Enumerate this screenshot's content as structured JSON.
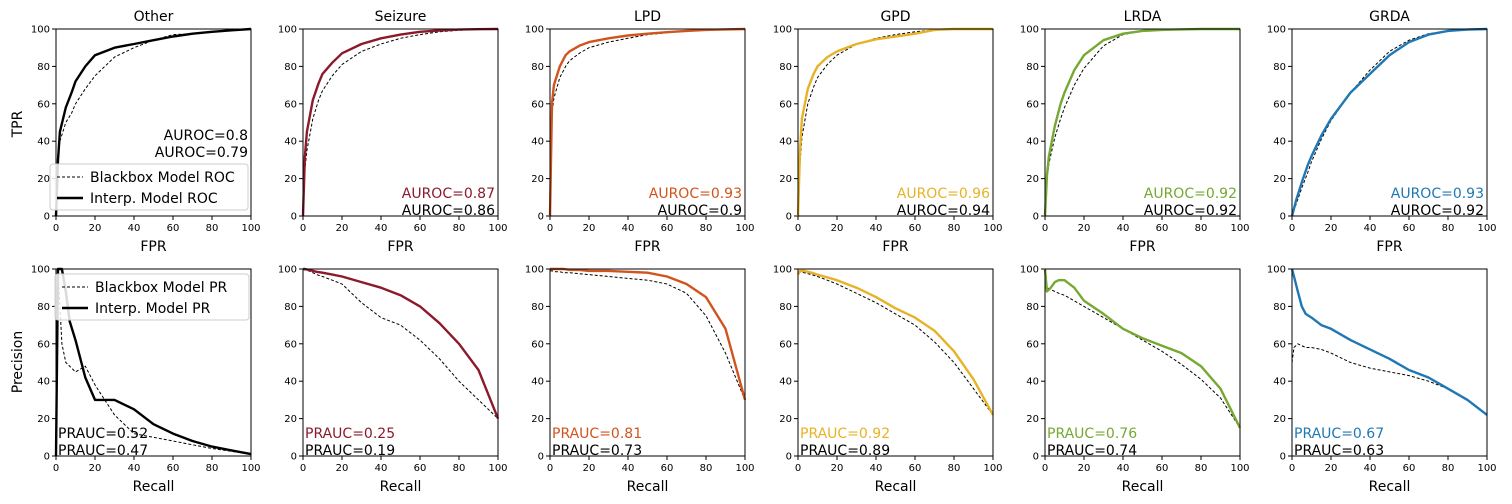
{
  "figure": {
    "row_ylabels": [
      "TPR",
      "Precision"
    ],
    "roc_xlabel": "FPR",
    "pr_xlabel": "Recall",
    "tick_values": [
      0,
      20,
      40,
      60,
      80,
      100
    ],
    "tick_labels": [
      "0",
      "20",
      "40",
      "60",
      "80",
      "100"
    ]
  },
  "legends": {
    "roc": [
      "Blackbox Model ROC",
      "Interp. Model ROC"
    ],
    "pr": [
      "Blackbox Model PR",
      "Interp. Model PR"
    ]
  },
  "classes": [
    {
      "name": "Other",
      "color": "#000000",
      "roc": {
        "interp_label": "AUROC=0.8",
        "blackbox_label": "AUROC=0.79"
      },
      "pr": {
        "interp_label": "PRAUC=0.52",
        "blackbox_label": "PRAUC=0.47"
      }
    },
    {
      "name": "Seizure",
      "color": "#8b1a2b",
      "roc": {
        "interp_label": "AUROC=0.87",
        "blackbox_label": "AUROC=0.86"
      },
      "pr": {
        "interp_label": "PRAUC=0.25",
        "blackbox_label": "PRAUC=0.19"
      }
    },
    {
      "name": "LPD",
      "color": "#d2541d",
      "roc": {
        "interp_label": "AUROC=0.93",
        "blackbox_label": "AUROC=0.9"
      },
      "pr": {
        "interp_label": "PRAUC=0.81",
        "blackbox_label": "PRAUC=0.73"
      }
    },
    {
      "name": "GPD",
      "color": "#e8b226",
      "roc": {
        "interp_label": "AUROC=0.96",
        "blackbox_label": "AUROC=0.94"
      },
      "pr": {
        "interp_label": "PRAUC=0.92",
        "blackbox_label": "PRAUC=0.89"
      }
    },
    {
      "name": "LRDA",
      "color": "#76a832",
      "roc": {
        "interp_label": "AUROC=0.92",
        "blackbox_label": "AUROC=0.92"
      },
      "pr": {
        "interp_label": "PRAUC=0.76",
        "blackbox_label": "PRAUC=0.74"
      }
    },
    {
      "name": "GRDA",
      "color": "#1f78b4",
      "roc": {
        "interp_label": "AUROC=0.93",
        "blackbox_label": "AUROC=0.92"
      },
      "pr": {
        "interp_label": "PRAUC=0.67",
        "blackbox_label": "PRAUC=0.63"
      }
    }
  ],
  "chart_data": [
    {
      "type": "line",
      "title": "Other",
      "xlabel": "FPR",
      "ylabel": "TPR",
      "xlim": [
        0,
        100
      ],
      "ylim": [
        0,
        100
      ],
      "x": [
        0,
        1,
        2,
        5,
        8,
        10,
        15,
        20,
        30,
        40,
        50,
        60,
        70,
        80,
        90,
        100
      ],
      "series": [
        {
          "name": "Interp. Model ROC",
          "values": [
            0,
            30,
            45,
            58,
            66,
            72,
            80,
            86,
            90,
            92,
            94,
            96,
            97.5,
            98.5,
            99.3,
            100
          ]
        },
        {
          "name": "Blackbox Model ROC",
          "values": [
            0,
            32,
            40,
            50,
            55,
            60,
            68,
            75,
            85,
            90,
            94,
            97,
            97.5,
            98.5,
            99.5,
            100
          ]
        }
      ]
    },
    {
      "type": "line",
      "title": "Seizure",
      "xlabel": "FPR",
      "ylabel": "TPR",
      "xlim": [
        0,
        100
      ],
      "ylim": [
        0,
        100
      ],
      "x": [
        0,
        1,
        2,
        5,
        8,
        10,
        15,
        20,
        30,
        40,
        50,
        60,
        70,
        80,
        90,
        100
      ],
      "series": [
        {
          "name": "Interp. Model ROC",
          "values": [
            0,
            32,
            45,
            62,
            71,
            76,
            82,
            87,
            92,
            95,
            97,
            98.5,
            99.2,
            99.7,
            99.9,
            100
          ]
        },
        {
          "name": "Blackbox Model ROC",
          "values": [
            0,
            25,
            35,
            52,
            62,
            67,
            75,
            81,
            88,
            92,
            95,
            97,
            98.5,
            99.3,
            99.8,
            100
          ]
        }
      ]
    },
    {
      "type": "line",
      "title": "LPD",
      "xlabel": "FPR",
      "ylabel": "TPR",
      "xlim": [
        0,
        100
      ],
      "ylim": [
        0,
        100
      ],
      "x": [
        0,
        1,
        2,
        5,
        8,
        10,
        15,
        20,
        30,
        40,
        50,
        60,
        70,
        80,
        90,
        100
      ],
      "series": [
        {
          "name": "Interp. Model ROC",
          "values": [
            0,
            60,
            70,
            80,
            86,
            88,
            91,
            93,
            95,
            96.5,
            97.5,
            98.3,
            99,
            99.5,
            99.8,
            100
          ]
        },
        {
          "name": "Blackbox Model ROC",
          "values": [
            0,
            55,
            63,
            74,
            80,
            83,
            87,
            90,
            93,
            95,
            97,
            98,
            99,
            99.5,
            99.8,
            100
          ]
        }
      ]
    },
    {
      "type": "line",
      "title": "GPD",
      "xlabel": "FPR",
      "ylabel": "TPR",
      "xlim": [
        0,
        100
      ],
      "ylim": [
        0,
        100
      ],
      "x": [
        0,
        1,
        2,
        5,
        8,
        10,
        15,
        20,
        30,
        40,
        50,
        60,
        70,
        80,
        90,
        100
      ],
      "series": [
        {
          "name": "Interp. Model ROC",
          "values": [
            0,
            35,
            52,
            68,
            76,
            80,
            85,
            88,
            92,
            94.5,
            96,
            97.5,
            99.5,
            100,
            100,
            100
          ]
        },
        {
          "name": "Blackbox Model ROC",
          "values": [
            0,
            28,
            42,
            60,
            69,
            74,
            81,
            86,
            92,
            95,
            97,
            98.5,
            99.5,
            100,
            100,
            100
          ]
        }
      ]
    },
    {
      "type": "line",
      "title": "LRDA",
      "xlabel": "FPR",
      "ylabel": "TPR",
      "xlim": [
        0,
        100
      ],
      "ylim": [
        0,
        100
      ],
      "x": [
        0,
        1,
        2,
        5,
        8,
        10,
        15,
        20,
        30,
        40,
        50,
        60,
        70,
        80,
        90,
        100
      ],
      "series": [
        {
          "name": "Interp. Model ROC",
          "values": [
            0,
            22,
            32,
            48,
            60,
            66,
            78,
            86,
            94,
            97.5,
            99,
            99.5,
            99.8,
            100,
            100,
            100
          ]
        },
        {
          "name": "Blackbox Model ROC",
          "values": [
            0,
            20,
            28,
            42,
            52,
            58,
            70,
            79,
            91,
            97,
            99,
            99.5,
            99.8,
            100,
            100,
            100
          ]
        }
      ]
    },
    {
      "type": "line",
      "title": "GRDA",
      "xlabel": "FPR",
      "ylabel": "TPR",
      "xlim": [
        0,
        100
      ],
      "ylim": [
        0,
        100
      ],
      "x": [
        0,
        1,
        2,
        5,
        8,
        10,
        15,
        20,
        30,
        40,
        50,
        60,
        70,
        80,
        90,
        100
      ],
      "series": [
        {
          "name": "Interp. Model ROC",
          "values": [
            0,
            4,
            8,
            18,
            27,
            32,
            43,
            52,
            66,
            76,
            86,
            93,
            97,
            99,
            99.7,
            100
          ]
        },
        {
          "name": "Blackbox Model ROC",
          "values": [
            0,
            3,
            6,
            15,
            23,
            29,
            41,
            51,
            66,
            78,
            88,
            94,
            97.5,
            99,
            99.7,
            100
          ]
        }
      ]
    },
    {
      "type": "line",
      "title": "Other",
      "xlabel": "Recall",
      "ylabel": "Precision",
      "xlim": [
        0,
        100
      ],
      "ylim": [
        0,
        100
      ],
      "x": [
        0,
        1,
        3,
        5,
        7,
        10,
        15,
        20,
        30,
        40,
        50,
        60,
        70,
        80,
        90,
        100
      ],
      "series": [
        {
          "name": "Interp. Model PR",
          "values": [
            0,
            100,
            100,
            88,
            72,
            62,
            42,
            30,
            30,
            25,
            17,
            12,
            8,
            5,
            3,
            1
          ]
        },
        {
          "name": "Blackbox Model PR",
          "values": [
            0,
            100,
            60,
            50,
            48,
            45,
            48,
            38,
            22,
            12,
            10,
            8,
            6,
            4,
            2.5,
            1
          ]
        }
      ]
    },
    {
      "type": "line",
      "title": "Seizure",
      "xlabel": "Recall",
      "ylabel": "Precision",
      "xlim": [
        0,
        100
      ],
      "ylim": [
        0,
        100
      ],
      "x": [
        0,
        1,
        3,
        5,
        7,
        10,
        15,
        20,
        30,
        40,
        50,
        60,
        70,
        80,
        90,
        100
      ],
      "series": [
        {
          "name": "Interp. Model PR",
          "values": [
            100,
            100,
            99.5,
            99,
            98.5,
            98,
            97,
            96,
            93,
            90,
            86,
            80,
            71,
            60,
            46,
            20
          ]
        },
        {
          "name": "Blackbox Model PR",
          "values": [
            100,
            99.5,
            99,
            98,
            97,
            96,
            94,
            92,
            82,
            74,
            70,
            62,
            52,
            40,
            30,
            20
          ]
        }
      ]
    },
    {
      "type": "line",
      "title": "LPD",
      "xlabel": "Recall",
      "ylabel": "Precision",
      "xlim": [
        0,
        100
      ],
      "ylim": [
        0,
        100
      ],
      "x": [
        0,
        1,
        3,
        5,
        7,
        10,
        15,
        20,
        30,
        40,
        50,
        60,
        70,
        80,
        90,
        100
      ],
      "series": [
        {
          "name": "Interp. Model PR",
          "values": [
            100,
            100,
            100,
            100,
            100,
            99.5,
            99.5,
            99,
            99,
            98.5,
            98,
            96,
            92,
            85,
            68,
            30
          ]
        },
        {
          "name": "Blackbox Model PR",
          "values": [
            99,
            99,
            98.5,
            98.5,
            98,
            98,
            97.5,
            97,
            96,
            95,
            94,
            92,
            87,
            75,
            55,
            30
          ]
        }
      ]
    },
    {
      "type": "line",
      "title": "GPD",
      "xlabel": "Recall",
      "ylabel": "Precision",
      "xlim": [
        0,
        100
      ],
      "ylim": [
        0,
        100
      ],
      "x": [
        0,
        1,
        3,
        5,
        7,
        10,
        15,
        20,
        30,
        40,
        50,
        60,
        70,
        80,
        90,
        100
      ],
      "series": [
        {
          "name": "Interp. Model PR",
          "values": [
            97,
            99,
            99,
            98.5,
            98,
            97,
            95.5,
            94,
            90,
            85,
            79,
            74,
            67,
            56,
            41,
            22
          ]
        },
        {
          "name": "Blackbox Model PR",
          "values": [
            98,
            98.5,
            98,
            97.5,
            97,
            96,
            94,
            92,
            87,
            82,
            76,
            70,
            61,
            50,
            36,
            22
          ]
        }
      ]
    },
    {
      "type": "line",
      "title": "LRDA",
      "xlabel": "Recall",
      "ylabel": "Precision",
      "xlim": [
        0,
        100
      ],
      "ylim": [
        0,
        100
      ],
      "x": [
        0,
        1,
        3,
        5,
        7,
        10,
        15,
        20,
        30,
        40,
        50,
        60,
        70,
        80,
        90,
        100
      ],
      "series": [
        {
          "name": "Interp. Model PR",
          "values": [
            100,
            88,
            90,
            93,
            94,
            94,
            90,
            83,
            76,
            68,
            63,
            59,
            55,
            48,
            36,
            15
          ]
        },
        {
          "name": "Blackbox Model PR",
          "values": [
            92,
            90,
            89,
            88,
            87,
            86,
            83,
            80,
            74,
            68,
            62,
            56,
            49,
            41,
            31,
            15
          ]
        }
      ]
    },
    {
      "type": "line",
      "title": "GRDA",
      "xlabel": "Recall",
      "ylabel": "Precision",
      "xlim": [
        0,
        100
      ],
      "ylim": [
        0,
        100
      ],
      "x": [
        0,
        1,
        3,
        5,
        7,
        10,
        15,
        20,
        30,
        40,
        50,
        60,
        70,
        80,
        90,
        100
      ],
      "series": [
        {
          "name": "Interp. Model PR",
          "values": [
            100,
            96,
            88,
            80,
            76,
            74,
            70,
            68,
            62,
            57,
            52,
            46,
            42,
            36,
            30,
            22
          ]
        },
        {
          "name": "Blackbox Model PR",
          "values": [
            50,
            58,
            60,
            59,
            58,
            58,
            57,
            55,
            50,
            47,
            45,
            43,
            40,
            36,
            30,
            22
          ]
        }
      ]
    }
  ]
}
